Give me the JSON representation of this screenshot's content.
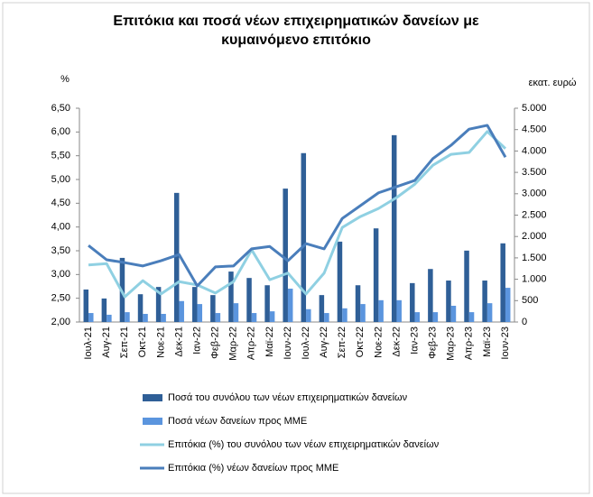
{
  "chart_data": {
    "type": "bar",
    "title": "Επιτόκια και ποσά νέων επιχειρηματικών δανείων με κυμαινόμενο επιτόκιο",
    "y_label": "%",
    "y2_label": "εκατ. ευρώ",
    "categories": [
      "Ιουλ-21",
      "Αυγ-21",
      "Σεπ-21",
      "Οκτ-21",
      "Νοε-21",
      "Δεκ-21",
      "Ιαν-22",
      "Φεβ-22",
      "Μαρ-22",
      "Απρ-22",
      "Μαϊ-22",
      "Ιουν-22",
      "Ιουλ-22",
      "Αυγ-22",
      "Σεπ-22",
      "Οκτ-22",
      "Νοε-22",
      "Δεκ-22",
      "Ιαν-23",
      "Φεβ-23",
      "Μαρ-23",
      "Απρ-23",
      "Μαϊ-23",
      "Ιουν-23"
    ],
    "ylim": [
      2,
      6.5
    ],
    "yticks": [
      {
        "value": 2,
        "label": "2,00"
      },
      {
        "value": 2.5,
        "label": "2,50"
      },
      {
        "value": 3,
        "label": "3,00"
      },
      {
        "value": 3.5,
        "label": "3,50"
      },
      {
        "value": 4,
        "label": "4,00"
      },
      {
        "value": 4.5,
        "label": "4,50"
      },
      {
        "value": 5,
        "label": "5,00"
      },
      {
        "value": 5.5,
        "label": "5,50"
      },
      {
        "value": 6,
        "label": "6,00"
      },
      {
        "value": 6.5,
        "label": "6,50"
      }
    ],
    "y2lim": [
      0,
      5000
    ],
    "y2ticks": [
      0,
      500,
      {
        "value": 1000,
        "label": "1.000"
      },
      {
        "value": 1500,
        "label": "1.500"
      },
      {
        "value": 2000,
        "label": "2.000"
      },
      {
        "value": 2500,
        "label": "2.500"
      },
      {
        "value": 3000,
        "label": "3.000"
      },
      {
        "value": 3500,
        "label": "3.500"
      },
      {
        "value": 4000,
        "label": "4.000"
      },
      {
        "value": 4500,
        "label": "4.500"
      },
      {
        "value": 5000,
        "label": "5.000"
      }
    ],
    "series": [
      {
        "name": "Ποσά του συνόλου των νέων επιχειρηματικών δανείων",
        "type": "bar",
        "axis": "y2",
        "color": "#2f5f97",
        "values": [
          760,
          550,
          1500,
          650,
          820,
          3020,
          820,
          630,
          1180,
          1030,
          860,
          3120,
          3950,
          630,
          1880,
          860,
          2190,
          4370,
          910,
          1240,
          970,
          1670,
          970,
          1840
        ]
      },
      {
        "name": "Ποσά νέων δανείων προς ΜΜΕ",
        "type": "bar",
        "axis": "y2",
        "color": "#5b95de",
        "values": [
          210,
          170,
          230,
          190,
          190,
          490,
          420,
          210,
          440,
          210,
          250,
          780,
          300,
          210,
          320,
          420,
          510,
          510,
          230,
          230,
          380,
          230,
          440,
          800
        ]
      },
      {
        "name": "Επιτόκια (%) του συνόλου των νέων επιχειρηματικών δανείων",
        "type": "line",
        "color": "#8fd0e2",
        "values": [
          3.2,
          3.23,
          2.53,
          2.87,
          2.59,
          2.85,
          2.78,
          2.61,
          2.85,
          3.52,
          2.89,
          3.03,
          2.59,
          3.03,
          3.99,
          4.22,
          4.39,
          4.62,
          4.9,
          5.3,
          5.53,
          5.57,
          6.01,
          5.65
        ]
      },
      {
        "name": "Επιτόκια (%) νέων δανείων προς ΜΜΕ",
        "type": "line",
        "color": "#4a7ebb",
        "values": [
          3.61,
          3.31,
          3.25,
          3.18,
          3.29,
          3.42,
          2.76,
          3.16,
          3.18,
          3.54,
          3.59,
          3.29,
          3.65,
          3.54,
          4.18,
          4.45,
          4.72,
          4.85,
          4.98,
          5.44,
          5.72,
          6.06,
          6.14,
          5.47
        ]
      }
    ]
  }
}
